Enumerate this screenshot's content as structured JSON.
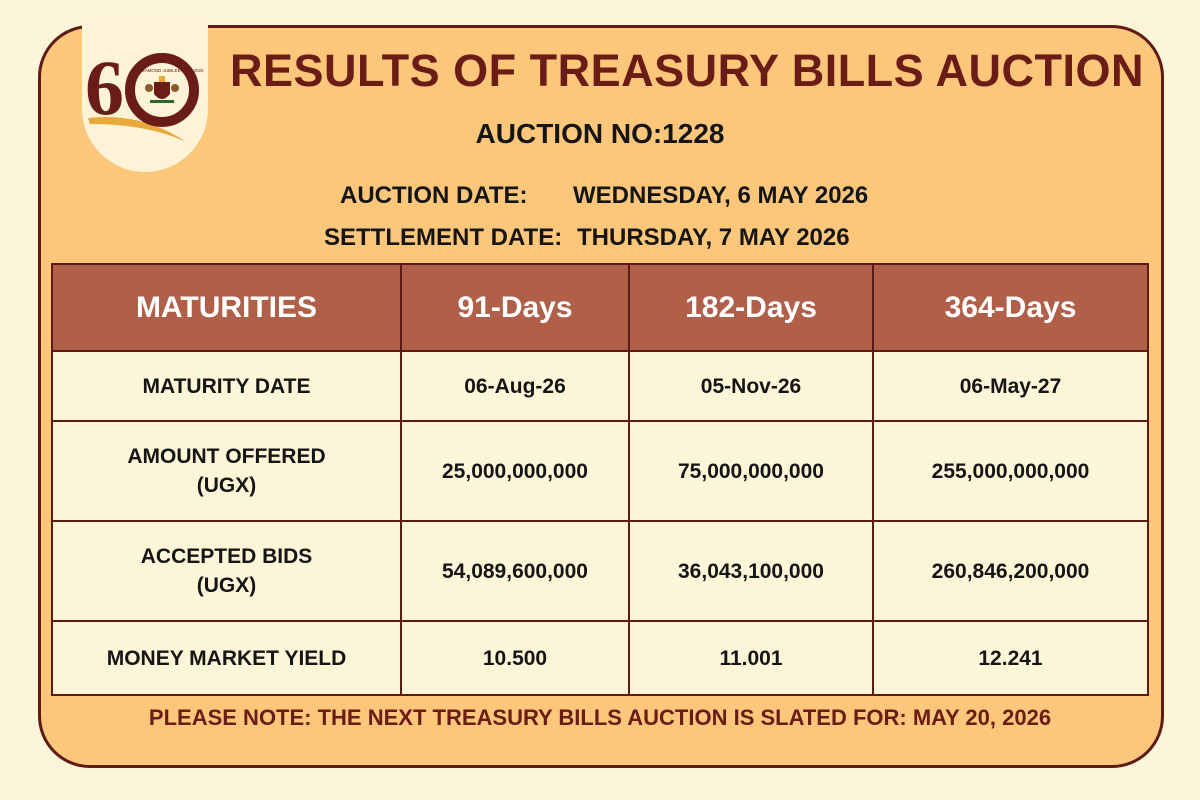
{
  "logo": {
    "numeral": "60",
    "ring_text": "DIAMOND JUBILEE 1966-2026",
    "colors": {
      "maroon": "#6a1c17",
      "gold": "#e9a83a"
    }
  },
  "header": {
    "title": "RESULTS OF TREASURY BILLS AUCTION",
    "auction_no": "AUCTION NO:1228",
    "auction_date_label": "AUCTION DATE:",
    "auction_date_value": "WEDNESDAY, 6 MAY 2026",
    "settlement_date_label": "SETTLEMENT DATE:",
    "settlement_date_value": "THURSDAY, 7 MAY 2026"
  },
  "table": {
    "columns": [
      "MATURITIES",
      "91-Days",
      "182-Days",
      "364-Days"
    ],
    "rows": [
      {
        "label": [
          "MATURITY DATE"
        ],
        "values": [
          "06-Aug-26",
          "05-Nov-26",
          "06-May-27"
        ]
      },
      {
        "label": [
          "AMOUNT OFFERED",
          "(UGX)"
        ],
        "values": [
          "25,000,000,000",
          "75,000,000,000",
          "255,000,000,000"
        ]
      },
      {
        "label": [
          "ACCEPTED BIDS",
          "(UGX)"
        ],
        "values": [
          "54,089,600,000",
          "36,043,100,000",
          "260,846,200,000"
        ]
      },
      {
        "label": [
          "MONEY MARKET YIELD"
        ],
        "values": [
          "10.500",
          "11.001",
          "12.241"
        ]
      }
    ]
  },
  "footer": {
    "note": "PLEASE NOTE: THE NEXT TREASURY BILLS AUCTION IS SLATED FOR: MAY 20, 2026"
  },
  "colors": {
    "page_background": "#fdf5d8",
    "card_background": "#fcc77a",
    "border": "#5e1a14",
    "title_text": "#6a1c17",
    "table_header": "#b05f49",
    "table_cell": "#fdf5d8"
  }
}
